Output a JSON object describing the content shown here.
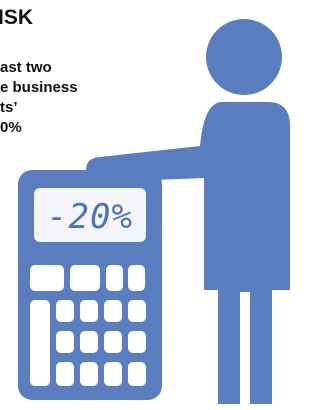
{
  "heading": "ISK",
  "body_lines": [
    "ast two",
    "e business",
    "ts’",
    "0%"
  ],
  "calculator": {
    "display": "-20%"
  }
}
